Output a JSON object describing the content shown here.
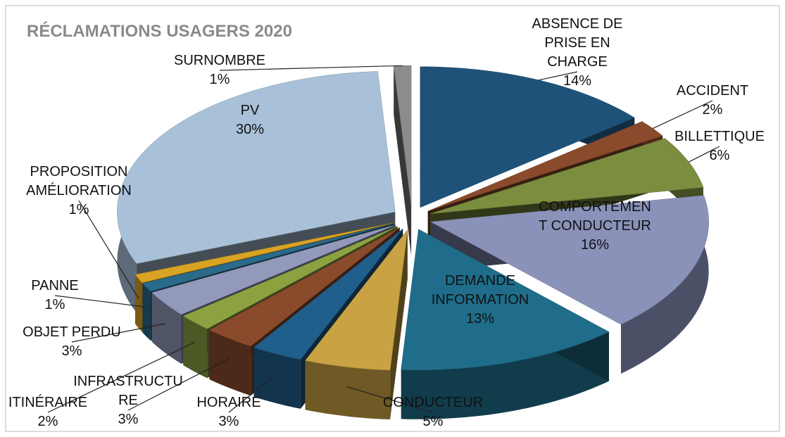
{
  "chart_data": {
    "type": "pie",
    "title": "RÉCLAMATIONS USAGERS 2020",
    "categories": [
      "ABSENCE DE\nPRISE EN\nCHARGE",
      "ACCIDENT",
      "BILLETTIQUE",
      "COMPORTEMEN\nT CONDUCTEUR",
      "DEMANDE\nINFORMATION",
      "CONDUCTEUR",
      "HORAIRE",
      "INFRASTRUCTU\nRE",
      "ITINÉRAIRE",
      "OBJET PERDU",
      "PANNE",
      "PROPOSITION\nAMÉLIORATION",
      "PV",
      "SURNOMBRE"
    ],
    "values": [
      14,
      2,
      6,
      16,
      13,
      5,
      3,
      3,
      2,
      3,
      1,
      1,
      30,
      1
    ],
    "value_labels": [
      "14%",
      "2%",
      "6%",
      "16%",
      "13%",
      "5%",
      "3%",
      "3%",
      "2%",
      "3%",
      "1%",
      "1%",
      "30%",
      "1%"
    ],
    "colors": [
      "#1f5278",
      "#8a4a2c",
      "#7b8d3f",
      "#8a92ba",
      "#1f6d8b",
      "#c9a243",
      "#205f8c",
      "#8a4a2c",
      "#8ca241",
      "#9299bb",
      "#2a6a8a",
      "#d9a323",
      "#a9c1d8",
      "#8c8c8c"
    ]
  }
}
